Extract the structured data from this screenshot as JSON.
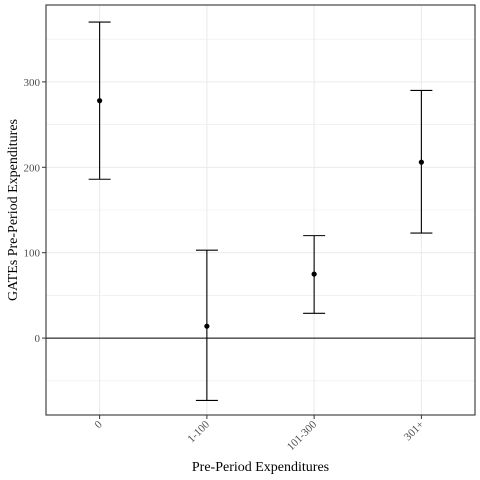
{
  "chart_data": {
    "type": "scatter",
    "subtype": "point-with-error-bars",
    "title": "",
    "xlabel": "Pre-Period Expenditures",
    "ylabel": "GATEs Pre-Period Expenditures",
    "categories": [
      "0",
      "1-100",
      "101-300",
      "301+"
    ],
    "points": [
      {
        "category": "0",
        "estimate": 278,
        "lower": 186,
        "upper": 370
      },
      {
        "category": "1-100",
        "estimate": 14,
        "lower": -73,
        "upper": 103
      },
      {
        "category": "101-300",
        "estimate": 75,
        "lower": 29,
        "upper": 120
      },
      {
        "category": "301+",
        "estimate": 206,
        "lower": 123,
        "upper": 290
      }
    ],
    "ylim": [
      -90,
      390
    ],
    "yticks": [
      0,
      100,
      200,
      300
    ],
    "reference_line_y": 0,
    "grid": true,
    "legend": "none",
    "colors": {
      "points": "#000000",
      "errorbars": "#000000",
      "grid": "#ebebeb",
      "panel_border": "#333333"
    }
  }
}
